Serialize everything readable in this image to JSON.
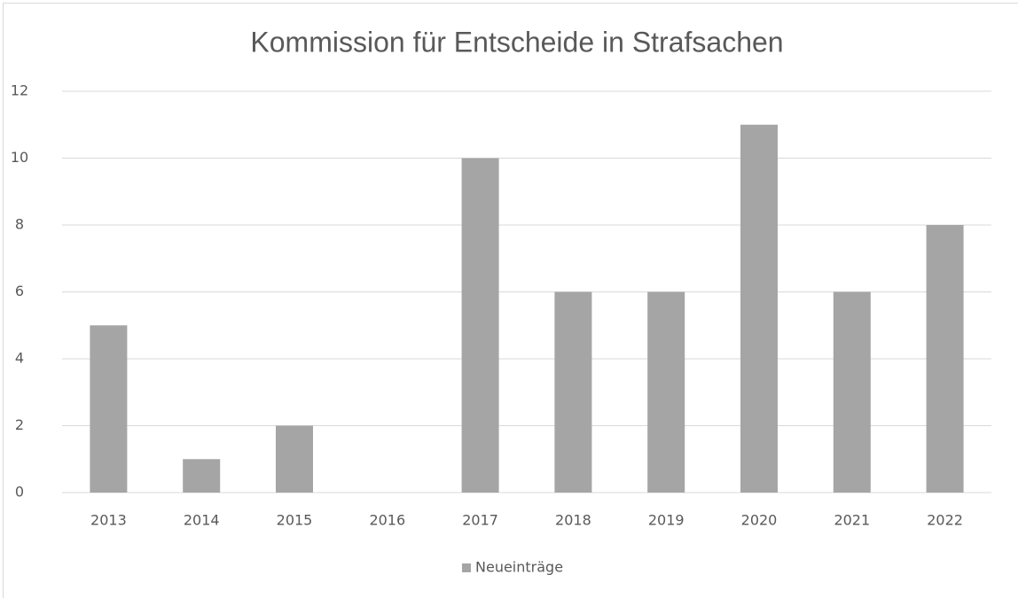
{
  "chart_data": {
    "type": "bar",
    "title": "Kommission für Entscheide in Strafsachen",
    "categories": [
      "2013",
      "2014",
      "2015",
      "2016",
      "2017",
      "2018",
      "2019",
      "2020",
      "2021",
      "2022"
    ],
    "series": [
      {
        "name": "Neueinträge",
        "color": "#a5a5a5",
        "values": [
          5,
          1,
          2,
          0,
          10,
          6,
          6,
          11,
          6,
          8
        ]
      }
    ],
    "ylim": [
      0,
      12
    ],
    "yticks": [
      0,
      2,
      4,
      6,
      8,
      10,
      12
    ],
    "grid": true,
    "legend": "bottom"
  }
}
